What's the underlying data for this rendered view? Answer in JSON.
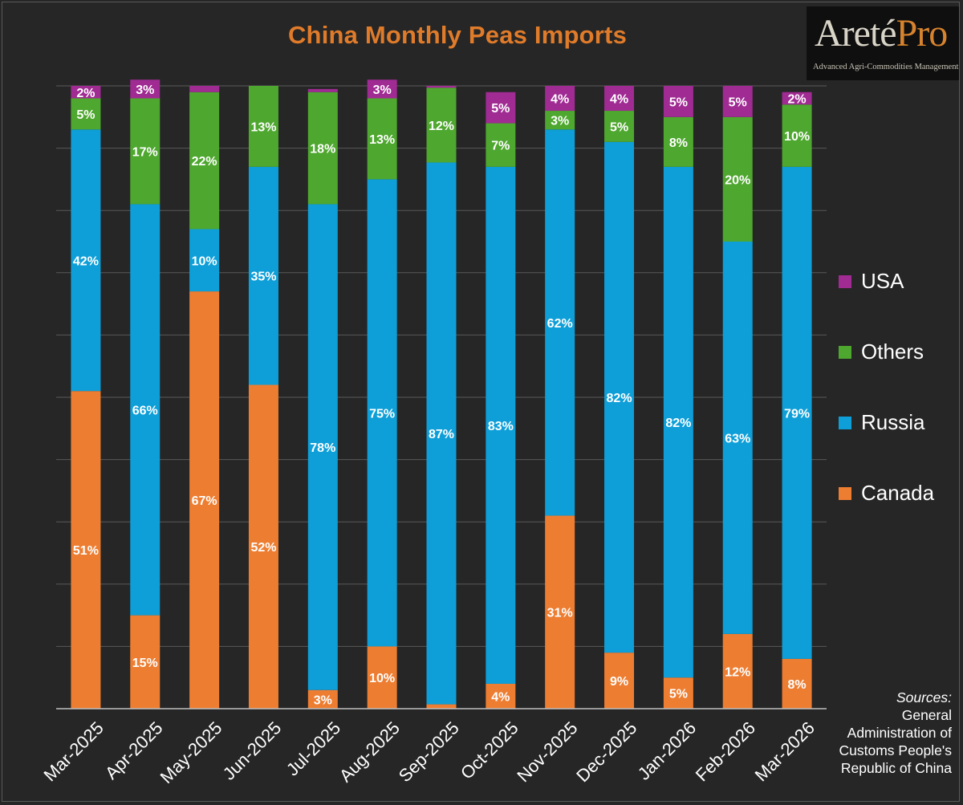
{
  "title": "China Monthly Peas Imports",
  "logo": {
    "main_a": "Areté",
    "main_b": "Pro",
    "tagline": "Advanced Agri-Commodities Management"
  },
  "sources": {
    "heading": "Sources:",
    "text": [
      "General",
      "Administration of",
      "Customs People's",
      "Republic of China"
    ]
  },
  "colors": {
    "background": "#262626",
    "Canada": "#ed7d31",
    "Russia": "#0e9fd8",
    "Others": "#4ea72e",
    "USA": "#a02b93",
    "gridline": "#595959",
    "title": "#e07b2a"
  },
  "legend": [
    "USA",
    "Others",
    "Russia",
    "Canada"
  ],
  "chart_data": {
    "type": "bar",
    "stacked": true,
    "percent_stacked": true,
    "title": "China Monthly Peas Imports",
    "categories": [
      "Mar-2025",
      "Apr-2025",
      "May-2025",
      "Jun-2025",
      "Jul-2025",
      "Aug-2025",
      "Sep-2025",
      "Oct-2025",
      "Nov-2025",
      "Dec-2025",
      "Jan-2026",
      "Feb-2026",
      "Mar-2026"
    ],
    "series": [
      {
        "name": "Canada",
        "values": [
          51,
          15,
          67,
          52,
          3,
          10,
          0.7,
          4,
          31,
          9,
          5,
          12,
          8
        ],
        "labels": [
          "51%",
          "15%",
          "67%",
          "52%",
          "3%",
          "10%",
          "",
          "4%",
          "31%",
          "9%",
          "5%",
          "12%",
          "8%"
        ]
      },
      {
        "name": "Russia",
        "values": [
          42,
          66,
          10,
          35,
          78,
          75,
          87,
          83,
          62,
          82,
          82,
          63,
          79
        ],
        "labels": [
          "42%",
          "66%",
          "10%",
          "35%",
          "78%",
          "75%",
          "87%",
          "83%",
          "62%",
          "82%",
          "82%",
          "63%",
          "79%"
        ]
      },
      {
        "name": "Others",
        "values": [
          5,
          17,
          22,
          13,
          18,
          13,
          12,
          7,
          3,
          5,
          8,
          20,
          10
        ],
        "labels": [
          "5%",
          "17%",
          "22%",
          "13%",
          "18%",
          "13%",
          "12%",
          "7%",
          "3%",
          "5%",
          "8%",
          "20%",
          "10%"
        ]
      },
      {
        "name": "USA",
        "values": [
          2,
          3,
          1,
          0,
          0.5,
          3,
          0.3,
          5,
          4,
          4,
          5,
          5,
          2
        ],
        "labels": [
          "2%",
          "3%",
          "",
          "",
          "",
          "3%",
          "",
          "5%",
          "4%",
          "4%",
          "5%",
          "5%",
          "2%"
        ]
      }
    ],
    "ylim": [
      0,
      100
    ],
    "grid": true,
    "legend_position": "right"
  }
}
